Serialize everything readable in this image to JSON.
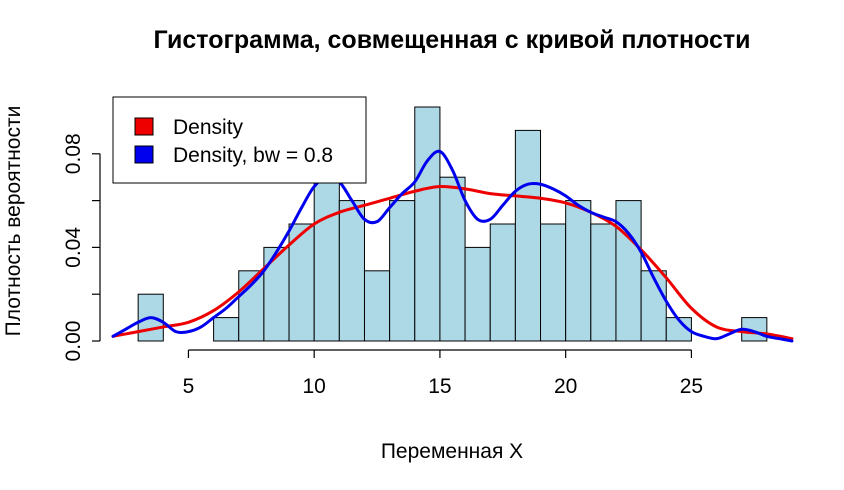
{
  "chart_data": {
    "type": "bar",
    "title": "Гистограмма, совмещенная с кривой плотности",
    "xlabel": "Переменная X",
    "ylabel": "Плотность вероятности",
    "xlim": [
      2,
      29
    ],
    "ylim": [
      0,
      0.1
    ],
    "grid": false,
    "legend_position": "top-left",
    "colors": {
      "bars": "#add8e6",
      "bar_border": "#000000",
      "density": "#ee0000",
      "density_bw": "#0000ee"
    },
    "x_ticks": [
      5,
      10,
      15,
      20,
      25
    ],
    "x_tick_labels": [
      "5",
      "10",
      "15",
      "20",
      "25"
    ],
    "y_ticks": [
      0.0,
      0.02,
      0.04,
      0.06,
      0.08
    ],
    "y_tick_labels": [
      "0.00",
      "0.04",
      "0.08"
    ],
    "y_labeled_ticks": [
      0.0,
      0.04,
      0.08
    ],
    "bin_width": 1,
    "bins": [
      {
        "start": 3,
        "end": 4,
        "density": 0.02
      },
      {
        "start": 6,
        "end": 7,
        "density": 0.01
      },
      {
        "start": 7,
        "end": 8,
        "density": 0.03
      },
      {
        "start": 8,
        "end": 9,
        "density": 0.04
      },
      {
        "start": 9,
        "end": 10,
        "density": 0.05
      },
      {
        "start": 10,
        "end": 11,
        "density": 0.07
      },
      {
        "start": 11,
        "end": 12,
        "density": 0.06
      },
      {
        "start": 12,
        "end": 13,
        "density": 0.03
      },
      {
        "start": 13,
        "end": 14,
        "density": 0.06
      },
      {
        "start": 14,
        "end": 15,
        "density": 0.1
      },
      {
        "start": 15,
        "end": 16,
        "density": 0.07
      },
      {
        "start": 16,
        "end": 17,
        "density": 0.04
      },
      {
        "start": 17,
        "end": 18,
        "density": 0.05
      },
      {
        "start": 18,
        "end": 19,
        "density": 0.09
      },
      {
        "start": 19,
        "end": 20,
        "density": 0.05
      },
      {
        "start": 20,
        "end": 21,
        "density": 0.06
      },
      {
        "start": 21,
        "end": 22,
        "density": 0.05
      },
      {
        "start": 22,
        "end": 23,
        "density": 0.06
      },
      {
        "start": 23,
        "end": 24,
        "density": 0.03
      },
      {
        "start": 24,
        "end": 25,
        "density": 0.01
      },
      {
        "start": 27,
        "end": 28,
        "density": 0.01
      }
    ],
    "series": [
      {
        "name": "Density",
        "color": "#ee0000",
        "x": [
          2,
          3,
          4,
          5,
          6,
          7,
          8,
          9,
          10,
          11,
          12,
          13,
          14,
          15,
          16,
          17,
          18,
          19,
          20,
          21,
          22,
          23,
          24,
          25,
          26,
          27,
          28,
          29
        ],
        "y": [
          0.002,
          0.004,
          0.006,
          0.008,
          0.013,
          0.021,
          0.031,
          0.041,
          0.05,
          0.055,
          0.058,
          0.061,
          0.064,
          0.066,
          0.065,
          0.063,
          0.062,
          0.061,
          0.059,
          0.055,
          0.049,
          0.039,
          0.027,
          0.014,
          0.006,
          0.004,
          0.003,
          0.001
        ]
      },
      {
        "name": "Density, bw = 0.8",
        "color": "#0000ee",
        "x": [
          2,
          2.5,
          3,
          3.5,
          4,
          4.5,
          5,
          5.5,
          6,
          6.5,
          7,
          7.5,
          8,
          8.5,
          9,
          9.5,
          10,
          10.5,
          11,
          11.5,
          12,
          12.5,
          13,
          13.5,
          14,
          14.5,
          15,
          15.5,
          16,
          16.5,
          17,
          17.5,
          18,
          18.5,
          19,
          19.5,
          20,
          20.5,
          21,
          21.5,
          22,
          22.5,
          23,
          23.5,
          24,
          24.5,
          25,
          25.5,
          26,
          26.5,
          27,
          27.5,
          28,
          28.5,
          29
        ],
        "y": [
          0.002,
          0.005,
          0.008,
          0.01,
          0.008,
          0.004,
          0.004,
          0.006,
          0.01,
          0.014,
          0.019,
          0.024,
          0.03,
          0.038,
          0.047,
          0.057,
          0.066,
          0.07,
          0.068,
          0.06,
          0.052,
          0.051,
          0.057,
          0.063,
          0.068,
          0.077,
          0.081,
          0.073,
          0.06,
          0.052,
          0.052,
          0.058,
          0.064,
          0.067,
          0.067,
          0.065,
          0.062,
          0.058,
          0.055,
          0.053,
          0.051,
          0.046,
          0.038,
          0.027,
          0.017,
          0.009,
          0.004,
          0.002,
          0.001,
          0.003,
          0.005,
          0.004,
          0.002,
          0.001,
          0.0
        ]
      }
    ]
  }
}
